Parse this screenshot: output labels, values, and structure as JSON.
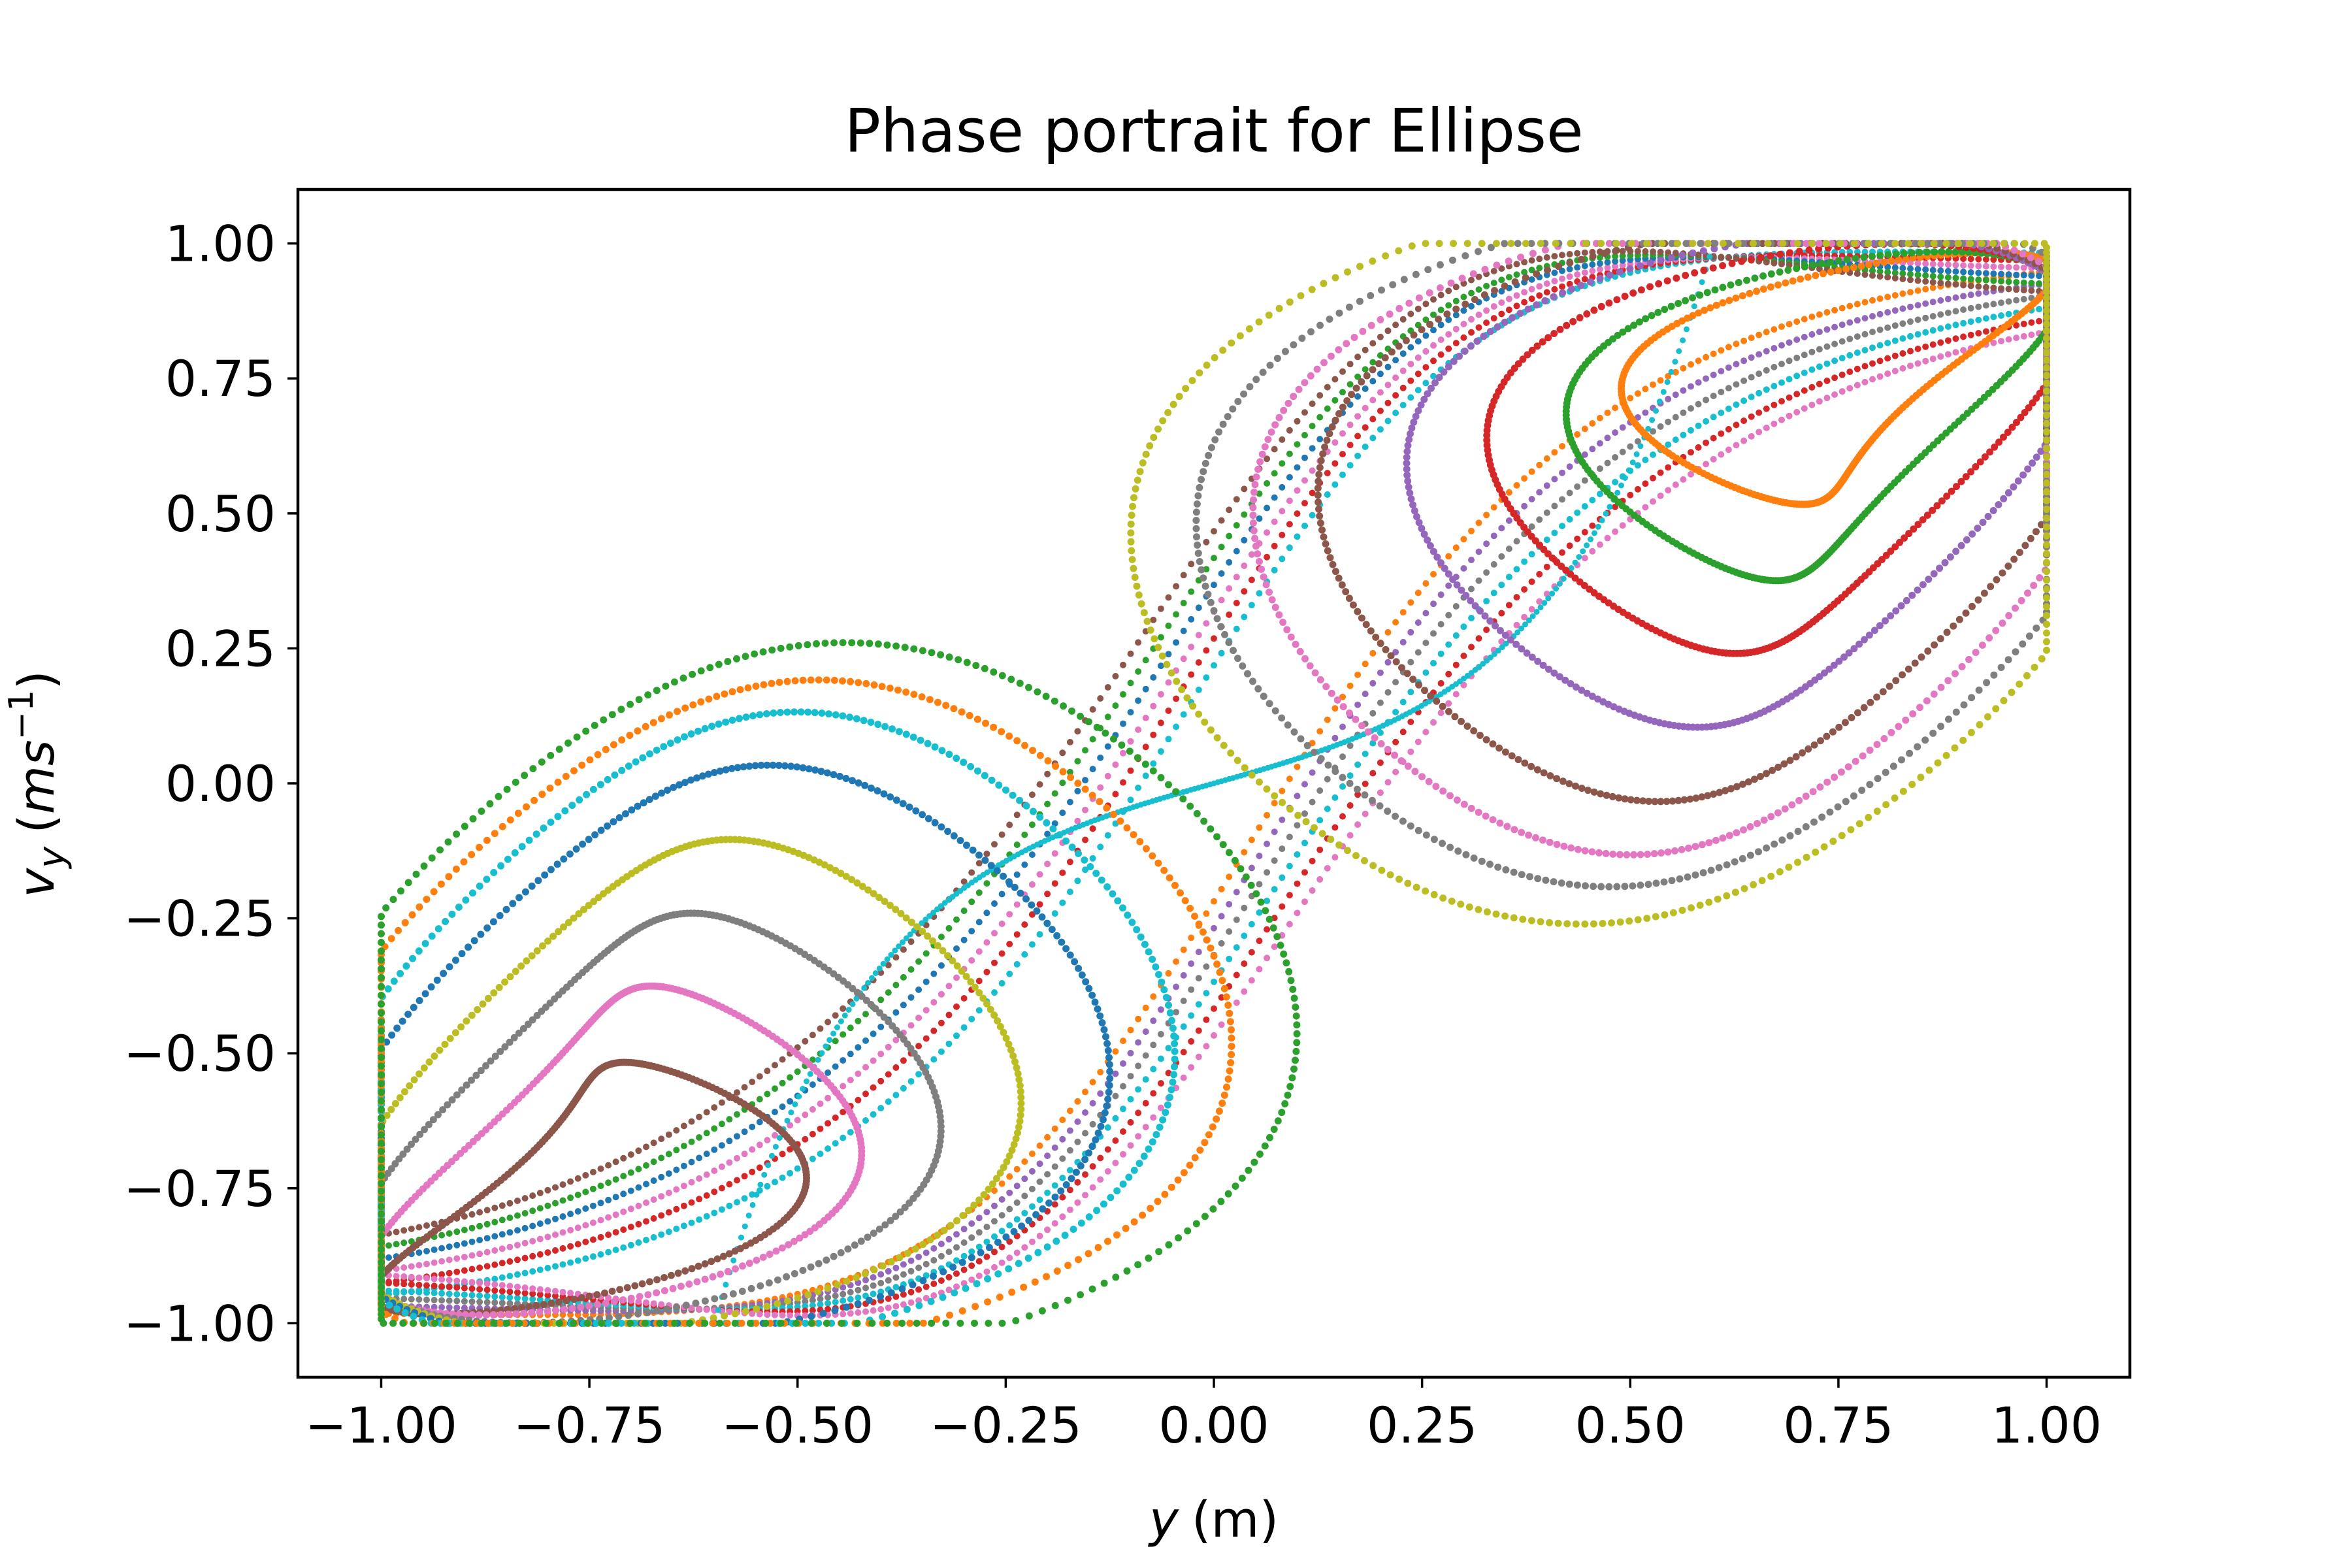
{
  "chart_data": {
    "type": "scatter",
    "title": "Phase portrait for Ellipse",
    "xlabel": {
      "var": "y",
      "unit": "(m)"
    },
    "ylabel": {
      "var": "v",
      "sub": "y",
      "unit_open": "(",
      "unit": "ms",
      "sup": "−1",
      "unit_close": ")"
    },
    "xlim": [
      -1.1,
      1.1
    ],
    "ylim": [
      -1.1,
      1.1
    ],
    "xticks": [
      -1.0,
      -0.75,
      -0.5,
      -0.25,
      0.0,
      0.25,
      0.5,
      0.75,
      1.0
    ],
    "xtick_labels": [
      "−1.00",
      "−0.75",
      "−0.50",
      "−0.25",
      "0.00",
      "0.25",
      "0.50",
      "0.75",
      "1.00"
    ],
    "yticks": [
      -1.0,
      -0.75,
      -0.5,
      -0.25,
      0.0,
      0.25,
      0.5,
      0.75,
      1.0
    ],
    "ytick_labels": [
      "−1.00",
      "−0.75",
      "−0.50",
      "−0.25",
      "0.00",
      "0.25",
      "0.50",
      "0.75",
      "1.00"
    ],
    "grid": false,
    "legend": "none",
    "colors": [
      "#17becf",
      "#ff7f0e",
      "#2ca02c",
      "#d62728",
      "#9467bd",
      "#8c564b",
      "#e377c2",
      "#7f7f7f",
      "#bcbd22",
      "#1f77b4"
    ],
    "trajectories": {
      "outer_separatrix_offsets": [
        0.0,
        0.05,
        0.1,
        0.15,
        0.2,
        0.25
      ],
      "lobe_loops": [
        {
          "center": [
            0.75,
            0.75
          ],
          "rx": 0.22,
          "ry": 0.2
        },
        {
          "center": [
            0.72,
            0.68
          ],
          "rx": 0.26,
          "ry": 0.28
        },
        {
          "center": [
            0.68,
            0.62
          ],
          "rx": 0.32,
          "ry": 0.36
        },
        {
          "center": [
            0.64,
            0.56
          ],
          "rx": 0.38,
          "ry": 0.44
        },
        {
          "center": [
            0.6,
            0.5
          ],
          "rx": 0.45,
          "ry": 0.52
        },
        {
          "center": [
            0.57,
            0.46
          ],
          "rx": 0.5,
          "ry": 0.58
        },
        {
          "center": [
            0.55,
            0.44
          ],
          "rx": 0.55,
          "ry": 0.62
        },
        {
          "center": [
            0.52,
            0.42
          ],
          "rx": 0.6,
          "ry": 0.67
        }
      ]
    }
  }
}
